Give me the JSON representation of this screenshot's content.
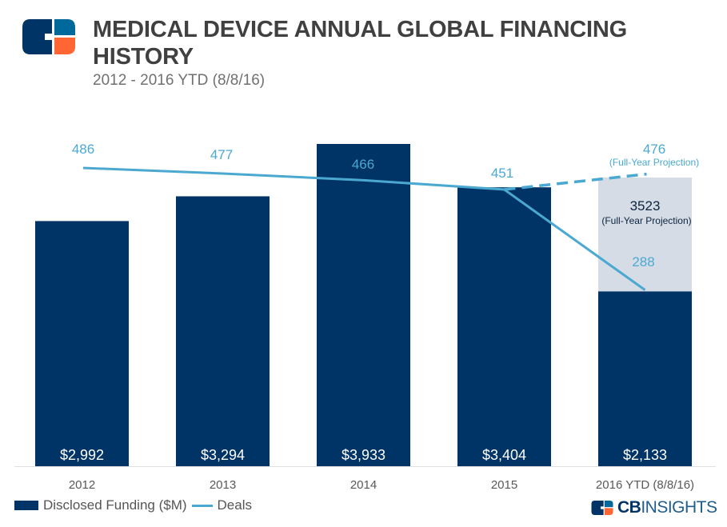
{
  "header": {
    "title": "MEDICAL DEVICE ANNUAL GLOBAL FINANCING HISTORY",
    "subtitle": "2012 - 2016 YTD (8/8/16)"
  },
  "legend": {
    "bar_label": "Disclosed Funding ($M)",
    "line_label": "Deals"
  },
  "brand": {
    "bold": "CB",
    "rest": "INSIGHTS"
  },
  "colors": {
    "bar": "#003366",
    "projection_bar": "#d5dce5",
    "line": "#4ba9d1",
    "logo_dark": "#003366",
    "logo_blue": "#00699b",
    "logo_orange": "#ff6633"
  },
  "chart_data": {
    "type": "bar",
    "title": "MEDICAL DEVICE ANNUAL GLOBAL FINANCING HISTORY",
    "subtitle": "2012 - 2016 YTD (8/8/16)",
    "xlabel": "",
    "ylabel": "",
    "categories": [
      "2012",
      "2013",
      "2014",
      "2015",
      "2016 YTD (8/8/16)"
    ],
    "series": [
      {
        "name": "Disclosed Funding ($M)",
        "kind": "bar",
        "values": [
          2992,
          3294,
          3933,
          3404,
          2133
        ],
        "labels": [
          "$2,992",
          "$3,294",
          "$3,933",
          "$3,404",
          "$2,133"
        ]
      },
      {
        "name": "Deals",
        "kind": "line",
        "values": [
          486,
          477,
          466,
          451,
          288
        ],
        "labels": [
          "486",
          "477",
          "466",
          "451",
          "288"
        ]
      }
    ],
    "projections": {
      "funding": {
        "category": "2016 YTD (8/8/16)",
        "value": 3523,
        "label": "3523",
        "note": "(Full-Year Projection)"
      },
      "deals": {
        "category": "2016 YTD (8/8/16)",
        "value": 476,
        "label": "476",
        "note": "(Full-Year Projection)"
      }
    },
    "ylim": [
      0,
      3933
    ],
    "grid": false,
    "legend_position": "bottom-left"
  }
}
